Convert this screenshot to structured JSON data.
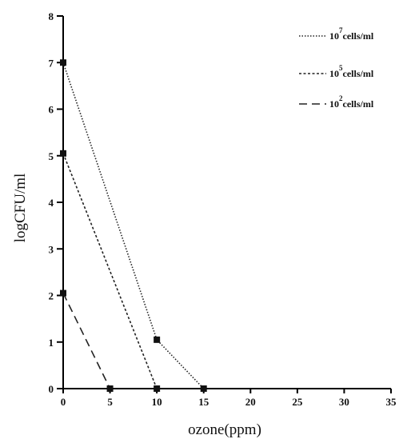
{
  "chart_data": {
    "type": "line",
    "title": "",
    "xlabel": "ozone(ppm)",
    "ylabel": "logCFU/ml",
    "xlim": [
      0,
      35
    ],
    "ylim": [
      0,
      8
    ],
    "xticks": [
      "0",
      "5",
      "10",
      "15",
      "20",
      "25",
      "30",
      "35"
    ],
    "yticks": [
      "0",
      "1",
      "2",
      "3",
      "4",
      "5",
      "6",
      "7",
      "8"
    ],
    "grid": false,
    "legend_position": "top-right",
    "series": [
      {
        "name": "10^7 cells/ml",
        "legend_base": "10",
        "legend_exp": "7",
        "legend_unit": "cells/ml",
        "line_style": "dotted",
        "x": [
          0,
          10,
          15
        ],
        "y": [
          7.0,
          1.05,
          0.0
        ]
      },
      {
        "name": "10^5 cells/ml",
        "legend_base": "10",
        "legend_exp": "5",
        "legend_unit": "cells/ml",
        "line_style": "short-dash",
        "x": [
          0,
          10
        ],
        "y": [
          5.05,
          0.0
        ]
      },
      {
        "name": "10^2 cells/ml",
        "legend_base": "10",
        "legend_exp": "2",
        "legend_unit": "cells/ml",
        "line_style": "long-dash",
        "x": [
          0,
          5
        ],
        "y": [
          2.05,
          0.0
        ]
      }
    ],
    "colors": {
      "line": "#222222",
      "marker": "#111111",
      "axis": "#000000"
    }
  }
}
